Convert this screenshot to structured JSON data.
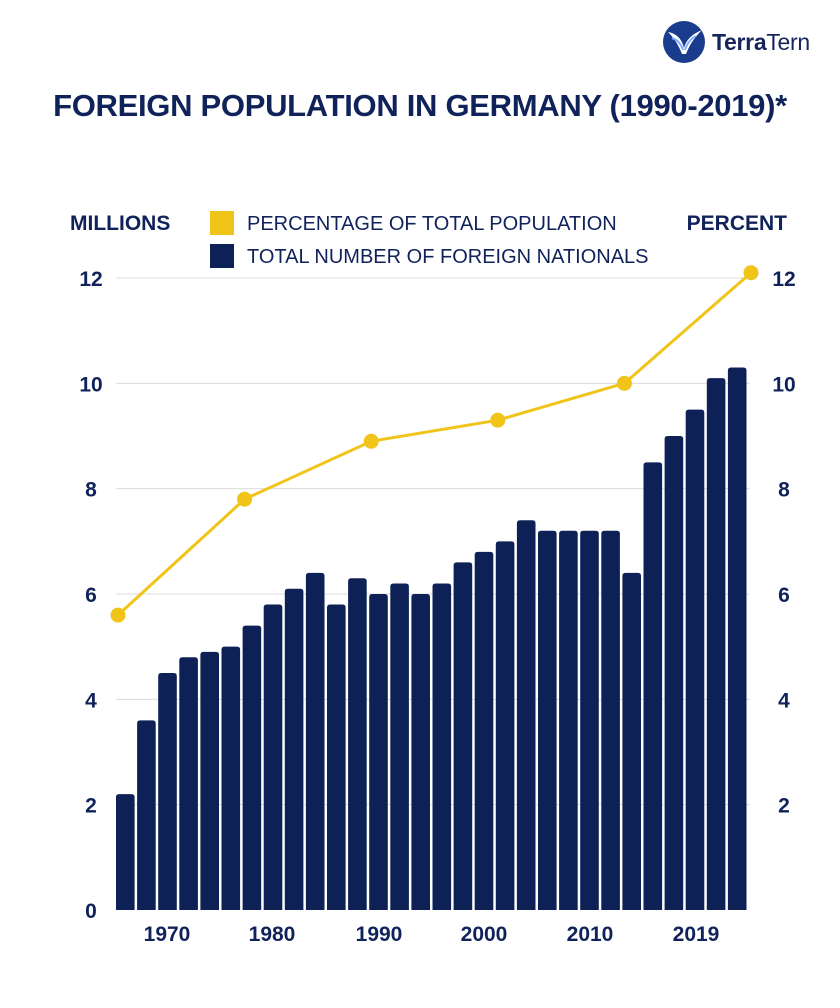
{
  "brand": {
    "name_bold": "Terra",
    "name_regular": "Tern",
    "icon": "bird-icon"
  },
  "title": "FOREIGN POPULATION IN GERMANY (1990-2019)*",
  "colors": {
    "navy": "#0e2156",
    "yellow": "#f0c419",
    "grid": "#dcdcdc",
    "text": "#10225a"
  },
  "chart_data": {
    "type": "bar",
    "left_axis_title": "MILLIONS",
    "right_axis_title": "PERCENT",
    "y_left_ticks": [
      "0",
      "2",
      "4",
      "6",
      "8",
      "10",
      "12"
    ],
    "y_right_ticks": [
      "2",
      "4",
      "6",
      "8",
      "10",
      "12"
    ],
    "ylim": [
      0,
      12
    ],
    "x_tick_labels": [
      "1970",
      "1980",
      "1990",
      "2000",
      "2010",
      "2019"
    ],
    "grid": true,
    "legend": {
      "position": "top-center",
      "items": [
        {
          "label": "PERCENTAGE OF TOTAL POPULATION",
          "color": "#f0c419",
          "series": "line"
        },
        {
          "label": "TOTAL NUMBER OF FOREIGN NATIONALS",
          "color": "#0e2156",
          "series": "bars"
        }
      ]
    },
    "series": [
      {
        "name": "TOTAL NUMBER OF FOREIGN NATIONALS",
        "kind": "bar",
        "values": [
          2.2,
          3.6,
          4.5,
          4.8,
          4.9,
          5.0,
          5.4,
          5.8,
          6.1,
          6.4,
          5.8,
          6.3,
          6.0,
          6.2,
          6.0,
          6.2,
          6.6,
          6.8,
          7.0,
          7.4,
          7.2,
          7.2,
          7.2,
          7.2,
          6.4,
          8.5,
          9.0,
          9.5,
          10.1,
          10.3
        ]
      },
      {
        "name": "PERCENTAGE OF TOTAL POPULATION",
        "kind": "line",
        "points": [
          {
            "bar_index": 0,
            "value": 5.6
          },
          {
            "bar_index": 6,
            "value": 7.8
          },
          {
            "bar_index": 12,
            "value": 8.9
          },
          {
            "bar_index": 18,
            "value": 9.3
          },
          {
            "bar_index": 24,
            "value": 10.0
          },
          {
            "bar_index": 30,
            "value": 12.1
          }
        ]
      }
    ]
  }
}
